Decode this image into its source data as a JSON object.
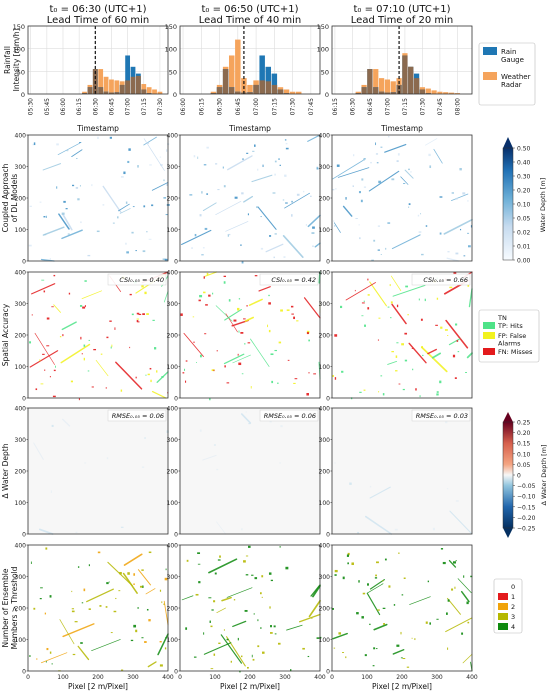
{
  "columns": [
    {
      "title_line1": "t₀ = 06:30 (UTC+1)",
      "title_line2": "Lead Time of 60 min",
      "csi": "CSI₀.₀₅ = 0.40",
      "rmse": "RMSE₀.₀₅ = 0.06"
    },
    {
      "title_line1": "t₀ = 06:50 (UTC+1)",
      "title_line2": "Lead Time of 40 min",
      "csi": "CSI₀.₀₅ = 0.42",
      "rmse": "RMSE₀.₀₅ = 0.06"
    },
    {
      "title_line1": "t₀ = 07:10 (UTC+1)",
      "title_line2": "Lead Time of 20 min",
      "csi": "CSI₀.₀₅ = 0.66",
      "rmse": "RMSE₀.₀₅ = 0.03"
    }
  ],
  "row_labels": {
    "rainfall": [
      "Rainfall",
      "Intensity [mm/h]"
    ],
    "depth": [
      "Coupled Approach",
      "of DL Models"
    ],
    "accuracy": [
      "Spatial Accuracy"
    ],
    "delta": [
      "Δ Water Depth"
    ],
    "ensemble": [
      "Number of Ensemble",
      "Members > Threshold"
    ]
  },
  "timestamp_label": "Timestamp",
  "pixel_label": "Pixel [2 m/Pixel]",
  "map_ticks": [
    "0",
    "100",
    "200",
    "300",
    "400"
  ],
  "legend_rain": {
    "gauge": [
      "Rain",
      "Gauge"
    ],
    "radar": [
      "Weather",
      "Radar"
    ]
  },
  "legend_accuracy": [
    {
      "label": [
        "TN"
      ],
      "color": "#ffffff"
    },
    {
      "label": [
        "TP: Hits"
      ],
      "color": "#4ee388"
    },
    {
      "label": [
        "FP: False",
        "Alarms"
      ],
      "color": "#f2f21e"
    },
    {
      "label": [
        "FN: Misses"
      ],
      "color": "#e31a1c"
    }
  ],
  "legend_ensemble": [
    {
      "label": "0",
      "color": "#ffffff"
    },
    {
      "label": "1",
      "color": "#e31a1c"
    },
    {
      "label": "2",
      "color": "#f0a30a"
    },
    {
      "label": "3",
      "color": "#b5b800"
    },
    {
      "label": "4",
      "color": "#0f8a0f"
    }
  ],
  "colorbar_depth": {
    "label": "Water Depth [m]",
    "ticks": [
      "0.50",
      "0.40",
      "0.30",
      "0.20",
      "0.10",
      "0.05",
      "0.02",
      "0.01",
      "0.00"
    ]
  },
  "colorbar_delta": {
    "label": "Δ Water Depth [m]",
    "ticks": [
      "0.25",
      "0.20",
      "0.15",
      "0.10",
      "0.05",
      "0",
      "−0.05",
      "−0.10",
      "−0.15",
      "−0.20",
      "−0.25"
    ]
  },
  "colors": {
    "gauge": "#1f77b4",
    "radar": "#f5a45c",
    "overlap": "#8b6a4f",
    "grid": "#dddddd"
  },
  "chart_data": [
    {
      "type": "bar",
      "title": "t₀ = 06:30 (UTC+1) Lead Time of 60 min",
      "xlabel": "Timestamp",
      "ylabel": "Rainfall Intensity [mm/h]",
      "ylim": [
        0,
        150
      ],
      "yticks": [
        0,
        50,
        100,
        150
      ],
      "categories": [
        "05:30",
        "05:35",
        "05:40",
        "05:45",
        "05:50",
        "05:55",
        "06:00",
        "06:05",
        "06:10",
        "06:15",
        "06:20",
        "06:25",
        "06:30",
        "06:35",
        "06:40",
        "06:45",
        "06:50",
        "06:55",
        "07:00",
        "07:05",
        "07:10",
        "07:15",
        "07:20",
        "07:25",
        "07:30",
        "07:35"
      ],
      "tick_labels": [
        "05:30",
        "05:45",
        "06:00",
        "06:15",
        "06:30",
        "06:45",
        "07:00",
        "07:15",
        "07:30"
      ],
      "t0_index": 12,
      "series": [
        {
          "name": "Rain Gauge",
          "values": [
            0,
            0,
            0,
            0,
            0,
            0,
            0,
            0,
            0,
            0,
            2,
            15,
            55,
            15,
            5,
            3,
            4,
            20,
            85,
            60,
            45,
            10,
            2,
            0,
            0,
            0
          ]
        },
        {
          "name": "Weather Radar",
          "values": [
            0,
            0,
            0,
            0,
            0,
            0,
            0,
            0,
            0,
            0,
            5,
            20,
            55,
            55,
            38,
            32,
            30,
            28,
            30,
            38,
            40,
            22,
            15,
            10,
            5,
            0
          ]
        }
      ]
    },
    {
      "type": "bar",
      "title": "t₀ = 06:50 (UTC+1) Lead Time of 40 min",
      "xlabel": "Timestamp",
      "ylabel": "Rainfall Intensity [mm/h]",
      "ylim": [
        0,
        150
      ],
      "yticks": [
        0,
        50,
        100,
        150
      ],
      "categories": [
        "06:00",
        "06:05",
        "06:10",
        "06:15",
        "06:20",
        "06:25",
        "06:30",
        "06:35",
        "06:40",
        "06:45",
        "06:50",
        "06:55",
        "07:00",
        "07:05",
        "07:10",
        "07:15",
        "07:20",
        "07:25",
        "07:30",
        "07:35",
        "07:40",
        "07:45",
        "07:50"
      ],
      "tick_labels": [
        "06:00",
        "06:15",
        "06:30",
        "06:45",
        "07:00",
        "07:15",
        "07:30",
        "07:45"
      ],
      "t0_index": 10,
      "series": [
        {
          "name": "Rain Gauge",
          "values": [
            0,
            0,
            0,
            0,
            0,
            2,
            15,
            55,
            15,
            5,
            3,
            4,
            20,
            85,
            60,
            45,
            10,
            2,
            0,
            0,
            0,
            0,
            0
          ]
        },
        {
          "name": "Weather Radar",
          "values": [
            0,
            0,
            0,
            0,
            0,
            5,
            20,
            60,
            85,
            120,
            35,
            20,
            30,
            30,
            28,
            20,
            15,
            10,
            5,
            5,
            0,
            0,
            0
          ]
        }
      ]
    },
    {
      "type": "bar",
      "title": "t₀ = 07:10 (UTC+1) Lead Time of 20 min",
      "xlabel": "Timestamp",
      "ylabel": "Rainfall Intensity [mm/h]",
      "ylim": [
        0,
        150
      ],
      "yticks": [
        0,
        50,
        100,
        150
      ],
      "categories": [
        "06:15",
        "06:20",
        "06:25",
        "06:30",
        "06:35",
        "06:40",
        "06:45",
        "06:50",
        "06:55",
        "07:00",
        "07:05",
        "07:10",
        "07:15",
        "07:20",
        "07:25",
        "07:30",
        "07:35",
        "07:40",
        "07:45",
        "07:50",
        "07:55",
        "08:00",
        "08:05",
        "08:10"
      ],
      "tick_labels": [
        "06:15",
        "06:30",
        "06:45",
        "07:00",
        "07:15",
        "07:30",
        "07:45",
        "08:00"
      ],
      "t0_index": 11,
      "series": [
        {
          "name": "Rain Gauge",
          "values": [
            0,
            0,
            0,
            0,
            2,
            15,
            55,
            15,
            5,
            3,
            4,
            20,
            85,
            60,
            45,
            10,
            2,
            0,
            0,
            0,
            0,
            0,
            0,
            0
          ]
        },
        {
          "name": "Weather Radar",
          "values": [
            0,
            0,
            0,
            0,
            5,
            20,
            55,
            55,
            35,
            32,
            28,
            35,
            90,
            60,
            35,
            15,
            12,
            8,
            5,
            4,
            3,
            2,
            0,
            0
          ]
        }
      ]
    }
  ]
}
